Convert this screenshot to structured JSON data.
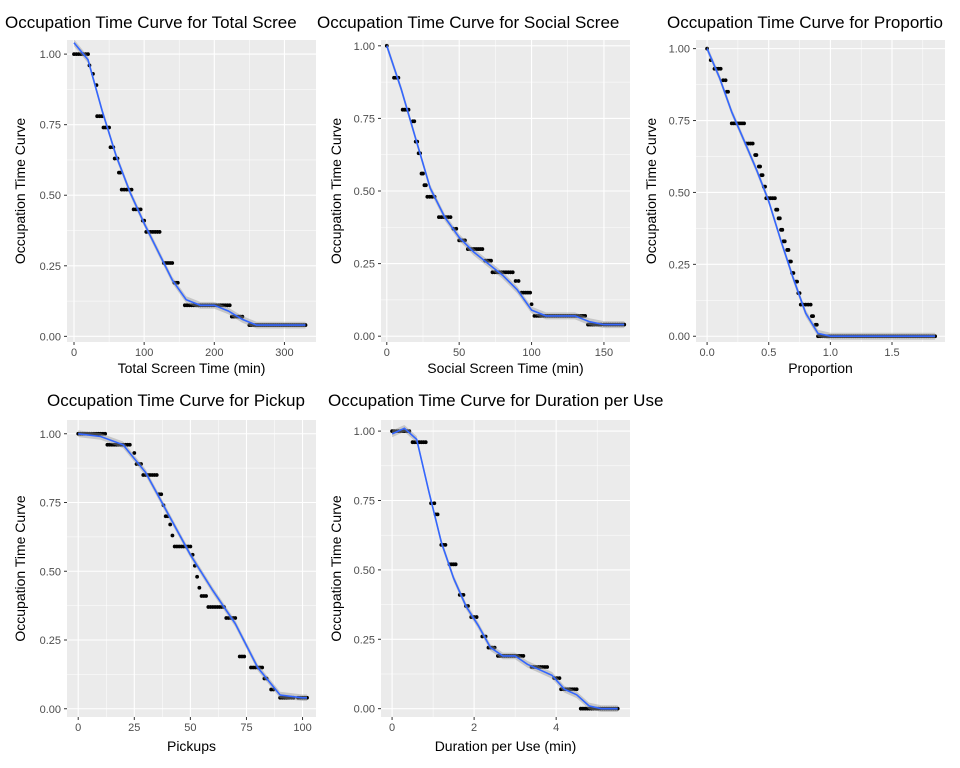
{
  "colors": {
    "panel_bg": "#ebebeb",
    "grid_major": "#ffffff",
    "point": "#000000",
    "smooth_line": "#3366ff",
    "confidence_band": "#999999"
  },
  "chart_data": [
    {
      "type": "scatter",
      "title": "Occupation Time Curve for Total Scree",
      "xlabel": "Total Screen Time (min)",
      "ylabel": "Occupation Time Curve",
      "xlim": [
        -10,
        345
      ],
      "ylim": [
        -0.02,
        1.05
      ],
      "xticks": [
        0,
        100,
        200,
        300
      ],
      "xtick_labels": [
        "0",
        "100",
        "200",
        "300"
      ],
      "yticks": [
        0,
        0.25,
        0.5,
        0.75,
        1
      ],
      "ytick_labels": [
        "0.00",
        "0.25",
        "0.50",
        "0.75",
        "1.00"
      ],
      "grid": true,
      "smooth_band": true,
      "steps": [
        [
          0,
          20,
          1.0
        ],
        [
          22,
          22,
          0.96
        ],
        [
          27,
          27,
          0.93
        ],
        [
          32,
          32,
          0.89
        ],
        [
          33,
          40,
          0.78
        ],
        [
          42,
          50,
          0.74
        ],
        [
          52,
          56,
          0.67
        ],
        [
          58,
          62,
          0.63
        ],
        [
          64,
          66,
          0.58
        ],
        [
          68,
          82,
          0.52
        ],
        [
          85,
          95,
          0.45
        ],
        [
          98,
          100,
          0.41
        ],
        [
          103,
          122,
          0.37
        ],
        [
          128,
          140,
          0.26
        ],
        [
          143,
          148,
          0.19
        ],
        [
          158,
          222,
          0.11
        ],
        [
          225,
          240,
          0.07
        ],
        [
          250,
          330,
          0.04
        ]
      ],
      "smooth": [
        [
          0,
          1.04
        ],
        [
          20,
          0.98
        ],
        [
          40,
          0.8
        ],
        [
          60,
          0.64
        ],
        [
          80,
          0.51
        ],
        [
          100,
          0.4
        ],
        [
          120,
          0.3
        ],
        [
          140,
          0.2
        ],
        [
          160,
          0.13
        ],
        [
          180,
          0.11
        ],
        [
          200,
          0.11
        ],
        [
          220,
          0.09
        ],
        [
          240,
          0.06
        ],
        [
          260,
          0.04
        ],
        [
          280,
          0.04
        ],
        [
          300,
          0.04
        ],
        [
          330,
          0.04
        ]
      ]
    },
    {
      "type": "scatter",
      "title": "Occupation Time Curve for Social Scree",
      "xlabel": "Social Screen Time (min)",
      "ylabel": "Occupation Time Curve",
      "xlim": [
        -4,
        168
      ],
      "ylim": [
        -0.02,
        1.02
      ],
      "xticks": [
        0,
        50,
        100,
        150
      ],
      "xtick_labels": [
        "0",
        "50",
        "100",
        "150"
      ],
      "yticks": [
        0,
        0.25,
        0.5,
        0.75,
        1
      ],
      "ytick_labels": [
        "0.00",
        "0.25",
        "0.50",
        "0.75",
        "1.00"
      ],
      "grid": true,
      "smooth_band": true,
      "steps": [
        [
          0,
          0,
          1.0
        ],
        [
          5,
          8,
          0.89
        ],
        [
          11,
          15,
          0.78
        ],
        [
          18,
          19,
          0.74
        ],
        [
          20,
          21,
          0.67
        ],
        [
          22,
          23,
          0.63
        ],
        [
          24,
          25,
          0.56
        ],
        [
          26,
          27,
          0.52
        ],
        [
          28,
          33,
          0.48
        ],
        [
          36,
          44,
          0.41
        ],
        [
          46,
          48,
          0.37
        ],
        [
          50,
          54,
          0.33
        ],
        [
          56,
          66,
          0.3
        ],
        [
          68,
          72,
          0.26
        ],
        [
          73,
          87,
          0.22
        ],
        [
          89,
          91,
          0.19
        ],
        [
          93,
          99,
          0.15
        ],
        [
          100,
          100,
          0.11
        ],
        [
          102,
          137,
          0.07
        ],
        [
          139,
          148,
          0.04
        ],
        [
          150,
          164,
          0.04
        ]
      ],
      "smooth": [
        [
          0,
          1.0
        ],
        [
          10,
          0.85
        ],
        [
          20,
          0.68
        ],
        [
          30,
          0.51
        ],
        [
          40,
          0.41
        ],
        [
          50,
          0.34
        ],
        [
          60,
          0.29
        ],
        [
          70,
          0.25
        ],
        [
          80,
          0.21
        ],
        [
          90,
          0.16
        ],
        [
          100,
          0.09
        ],
        [
          110,
          0.07
        ],
        [
          120,
          0.07
        ],
        [
          130,
          0.07
        ],
        [
          140,
          0.05
        ],
        [
          150,
          0.04
        ],
        [
          164,
          0.04
        ]
      ]
    },
    {
      "type": "scatter",
      "title": "Occupation Time Curve for Proportio",
      "xlabel": "Proportion",
      "ylabel": "Occupation Time Curve",
      "xlim": [
        -0.09,
        1.93
      ],
      "ylim": [
        -0.02,
        1.03
      ],
      "xticks": [
        0,
        0.5,
        1,
        1.5
      ],
      "xtick_labels": [
        "0.0",
        "0.5",
        "1.0",
        "1.5"
      ],
      "yticks": [
        0,
        0.25,
        0.5,
        0.75,
        1
      ],
      "ytick_labels": [
        "0.00",
        "0.25",
        "0.50",
        "0.75",
        "1.00"
      ],
      "grid": true,
      "smooth_band": true,
      "steps": [
        [
          0.0,
          0.0,
          1.0
        ],
        [
          0.03,
          0.03,
          0.96
        ],
        [
          0.06,
          0.11,
          0.93
        ],
        [
          0.13,
          0.15,
          0.89
        ],
        [
          0.16,
          0.17,
          0.85
        ],
        [
          0.2,
          0.3,
          0.74
        ],
        [
          0.32,
          0.37,
          0.67
        ],
        [
          0.39,
          0.4,
          0.63
        ],
        [
          0.42,
          0.43,
          0.59
        ],
        [
          0.44,
          0.45,
          0.56
        ],
        [
          0.46,
          0.47,
          0.52
        ],
        [
          0.48,
          0.55,
          0.48
        ],
        [
          0.56,
          0.57,
          0.44
        ],
        [
          0.58,
          0.59,
          0.41
        ],
        [
          0.6,
          0.61,
          0.37
        ],
        [
          0.62,
          0.63,
          0.33
        ],
        [
          0.65,
          0.66,
          0.3
        ],
        [
          0.67,
          0.68,
          0.26
        ],
        [
          0.69,
          0.7,
          0.22
        ],
        [
          0.72,
          0.73,
          0.19
        ],
        [
          0.74,
          0.75,
          0.15
        ],
        [
          0.76,
          0.84,
          0.11
        ],
        [
          0.85,
          0.86,
          0.07
        ],
        [
          0.88,
          0.89,
          0.04
        ],
        [
          0.9,
          1.85,
          0.0
        ]
      ],
      "smooth": [
        [
          0.0,
          1.0
        ],
        [
          0.1,
          0.9
        ],
        [
          0.2,
          0.78
        ],
        [
          0.3,
          0.68
        ],
        [
          0.4,
          0.58
        ],
        [
          0.5,
          0.47
        ],
        [
          0.6,
          0.33
        ],
        [
          0.7,
          0.2
        ],
        [
          0.8,
          0.08
        ],
        [
          0.9,
          0.01
        ],
        [
          1.0,
          0.0
        ],
        [
          1.2,
          0.0
        ],
        [
          1.5,
          0.0
        ],
        [
          1.85,
          0.0
        ]
      ]
    },
    {
      "type": "scatter",
      "title": "Occupation Time Curve for Pickup",
      "xlabel": "Pickups",
      "ylabel": "Occupation Time Curve",
      "xlim": [
        -5,
        106
      ],
      "ylim": [
        -0.03,
        1.05
      ],
      "xticks": [
        0,
        25,
        50,
        75,
        100
      ],
      "xtick_labels": [
        "0",
        "25",
        "50",
        "75",
        "100"
      ],
      "yticks": [
        0,
        0.25,
        0.5,
        0.75,
        1
      ],
      "ytick_labels": [
        "0.00",
        "0.25",
        "0.50",
        "0.75",
        "1.00"
      ],
      "grid": true,
      "smooth_band": true,
      "steps": [
        [
          0,
          12,
          1.0
        ],
        [
          13,
          23,
          0.96
        ],
        [
          25,
          25,
          0.93
        ],
        [
          26,
          28,
          0.89
        ],
        [
          29,
          35,
          0.85
        ],
        [
          36,
          37,
          0.78
        ],
        [
          38,
          38,
          0.74
        ],
        [
          39,
          40,
          0.7
        ],
        [
          41,
          41,
          0.67
        ],
        [
          42,
          42,
          0.63
        ],
        [
          43,
          50,
          0.59
        ],
        [
          51,
          51,
          0.56
        ],
        [
          52,
          52,
          0.52
        ],
        [
          53,
          53,
          0.48
        ],
        [
          54,
          54,
          0.44
        ],
        [
          55,
          57,
          0.41
        ],
        [
          58,
          65,
          0.37
        ],
        [
          66,
          67,
          0.33
        ],
        [
          68,
          70,
          0.33
        ],
        [
          72,
          74,
          0.19
        ],
        [
          77,
          82,
          0.15
        ],
        [
          83,
          84,
          0.11
        ],
        [
          86,
          87,
          0.07
        ],
        [
          90,
          96,
          0.04
        ],
        [
          98,
          102,
          0.04
        ]
      ],
      "smooth": [
        [
          0,
          1.0
        ],
        [
          10,
          0.99
        ],
        [
          20,
          0.96
        ],
        [
          30,
          0.86
        ],
        [
          40,
          0.71
        ],
        [
          50,
          0.56
        ],
        [
          60,
          0.43
        ],
        [
          70,
          0.31
        ],
        [
          80,
          0.15
        ],
        [
          90,
          0.05
        ],
        [
          100,
          0.04
        ],
        [
          102,
          0.04
        ]
      ]
    },
    {
      "type": "scatter",
      "title": "Occupation Time Curve for Duration per Use",
      "xlabel": "Duration per Use (min)",
      "ylabel": "Occupation Time Curve",
      "xlim": [
        -0.27,
        5.8
      ],
      "ylim": [
        -0.03,
        1.04
      ],
      "xticks": [
        0,
        2,
        4
      ],
      "xtick_labels": [
        "0",
        "2",
        "4"
      ],
      "yticks": [
        0,
        0.25,
        0.5,
        0.75,
        1
      ],
      "ytick_labels": [
        "0.00",
        "0.25",
        "0.50",
        "0.75",
        "1.00"
      ],
      "grid": true,
      "smooth_band": true,
      "steps": [
        [
          0.0,
          0.42,
          1.0
        ],
        [
          0.5,
          0.82,
          0.96
        ],
        [
          0.95,
          1.03,
          0.74
        ],
        [
          1.06,
          1.11,
          0.7
        ],
        [
          1.2,
          1.3,
          0.59
        ],
        [
          1.4,
          1.55,
          0.52
        ],
        [
          1.65,
          1.74,
          0.41
        ],
        [
          1.8,
          1.85,
          0.37
        ],
        [
          1.93,
          2.06,
          0.33
        ],
        [
          2.2,
          2.28,
          0.26
        ],
        [
          2.35,
          2.5,
          0.22
        ],
        [
          2.58,
          3.2,
          0.19
        ],
        [
          3.4,
          3.78,
          0.15
        ],
        [
          3.95,
          4.08,
          0.11
        ],
        [
          4.12,
          4.5,
          0.07
        ],
        [
          4.6,
          5.5,
          0.0
        ]
      ],
      "smooth": [
        [
          0.0,
          0.99
        ],
        [
          0.3,
          1.01
        ],
        [
          0.6,
          0.97
        ],
        [
          0.9,
          0.78
        ],
        [
          1.2,
          0.6
        ],
        [
          1.5,
          0.47
        ],
        [
          1.8,
          0.37
        ],
        [
          2.1,
          0.3
        ],
        [
          2.4,
          0.22
        ],
        [
          2.7,
          0.19
        ],
        [
          3.0,
          0.19
        ],
        [
          3.3,
          0.16
        ],
        [
          3.6,
          0.14
        ],
        [
          3.9,
          0.12
        ],
        [
          4.2,
          0.07
        ],
        [
          4.5,
          0.05
        ],
        [
          4.8,
          0.01
        ],
        [
          5.1,
          0.0
        ],
        [
          5.5,
          0.0
        ]
      ]
    }
  ]
}
